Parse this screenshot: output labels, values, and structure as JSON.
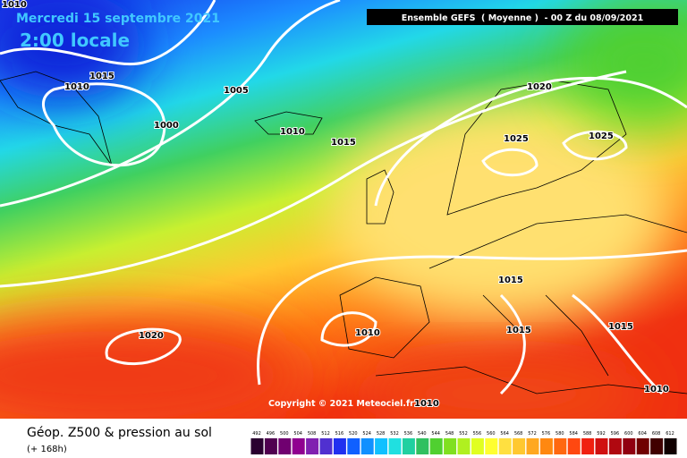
{
  "header": {
    "date": "Mercredi 15 septembre 2021",
    "time": "2:00 locale",
    "model": "Ensemble GEFS  ( Moyenne )  - 00 Z du 08/09/2021"
  },
  "isobar_labels": [
    "1010",
    "1015",
    "1010",
    "1005",
    "1000",
    "1010",
    "1015",
    "1020",
    "1025",
    "1025",
    "1015",
    "1015",
    "1015",
    "1020",
    "1010",
    "1010",
    "1010"
  ],
  "copyright": "Copyright © 2021 Meteociel.fr",
  "footer": {
    "title": "Géop. Z500 & pression au sol",
    "lead": "(+ 168h)"
  },
  "colorbar": {
    "levels": [
      492,
      496,
      500,
      504,
      508,
      512,
      516,
      520,
      524,
      528,
      532,
      536,
      540,
      544,
      548,
      552,
      556,
      560,
      564,
      568,
      572,
      576,
      580,
      584,
      588,
      592,
      596,
      600,
      604,
      608,
      612
    ],
    "colors": [
      "#2a0030",
      "#500050",
      "#700070",
      "#900090",
      "#8020b0",
      "#5030d0",
      "#2030f0",
      "#1060ff",
      "#1090ff",
      "#10c0ff",
      "#20e0e0",
      "#20d0a0",
      "#30c060",
      "#50d030",
      "#80e020",
      "#b0f020",
      "#e0ff20",
      "#ffff30",
      "#ffe040",
      "#ffc830",
      "#ffa820",
      "#ff8810",
      "#ff6810",
      "#ff4810",
      "#f02010",
      "#d01010",
      "#b00810",
      "#900010",
      "#700000",
      "#400000",
      "#100000"
    ]
  }
}
